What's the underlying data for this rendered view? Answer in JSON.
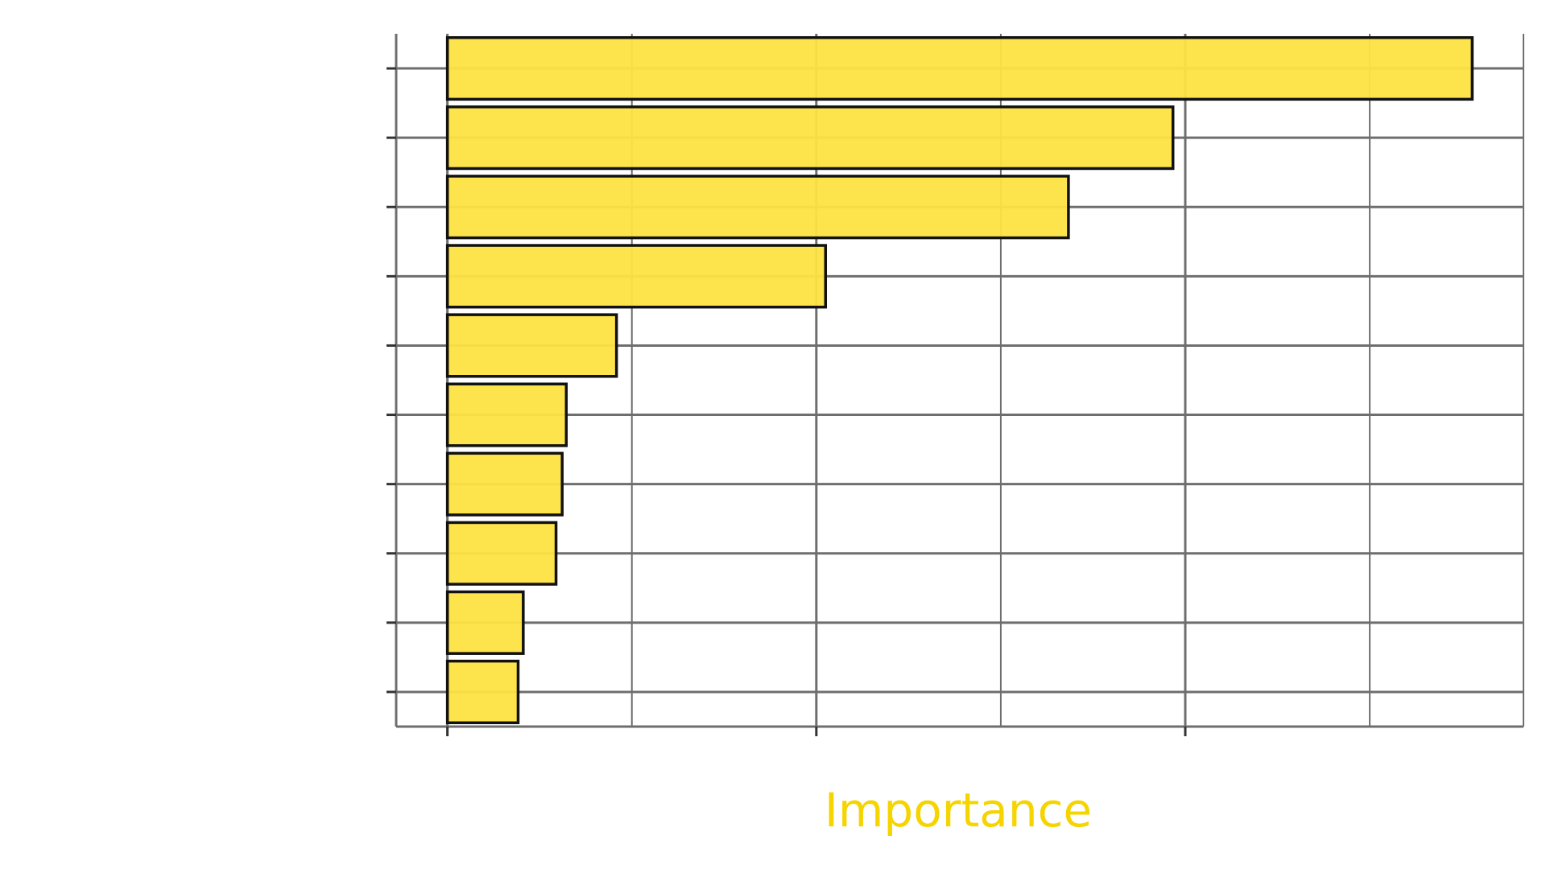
{
  "chart_data": {
    "type": "bar",
    "orientation": "horizontal",
    "title": "",
    "xlabel": "Importance",
    "ylabel": "",
    "categories": [
      "",
      "",
      "",
      "",
      "",
      "",
      "",
      "",
      "",
      ""
    ],
    "values": [
      100,
      70.8,
      60.6,
      36.9,
      16.5,
      11.6,
      11.2,
      10.6,
      7.4,
      6.9
    ],
    "xlim": [
      -5,
      105
    ],
    "x_major_ticks": [
      0,
      36,
      72
    ],
    "x_minor_ticks": [
      18,
      54,
      90
    ],
    "x_tick_labels": [
      "",
      "",
      ""
    ],
    "grid": true,
    "legend": "none",
    "colors": {
      "bar_fill": "#fde342",
      "bar_stroke": "#111111",
      "grid": "#6e6e6e",
      "axis_title": "#f5d400",
      "background": "#ffffff"
    }
  }
}
